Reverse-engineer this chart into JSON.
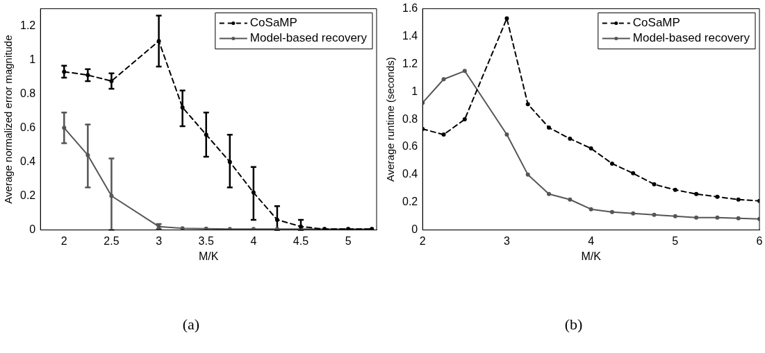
{
  "chart_data": [
    {
      "type": "line",
      "xlabel": "M/K",
      "ylabel": "Average normalized error magnitude",
      "annotations": [
        "(a)"
      ],
      "xlim": [
        1.75,
        5.3
      ],
      "xticks": [
        2,
        2.5,
        3,
        3.5,
        4,
        4.5,
        5
      ],
      "ylim": [
        0,
        1.3
      ],
      "yticks": [
        0,
        0.2,
        0.4,
        0.6,
        0.8,
        1,
        1.2
      ],
      "legend": "top right",
      "grid": false,
      "marker": "circle",
      "x": [
        2,
        2.25,
        2.5,
        3,
        3.25,
        3.5,
        3.75,
        4,
        4.25,
        4.5,
        4.75,
        5,
        5.25
      ],
      "series": [
        {
          "name": "CoSaMP",
          "color": "#000000",
          "line_style": "dashed",
          "values": [
            0.93,
            0.91,
            0.875,
            1.11,
            0.72,
            0.56,
            0.4,
            0.22,
            0.06,
            0.02,
            0.005,
            0.005,
            0.005
          ],
          "errors": [
            [
              0.895,
              0.965
            ],
            [
              0.875,
              0.945
            ],
            [
              0.83,
              0.92
            ],
            [
              0.96,
              1.26
            ],
            [
              0.61,
              0.82
            ],
            [
              0.43,
              0.69
            ],
            [
              0.25,
              0.56
            ],
            [
              0.06,
              0.37
            ],
            [
              0,
              0.14
            ],
            [
              0,
              0.06
            ],
            null,
            null,
            null
          ]
        },
        {
          "name": "Model-based recovery",
          "color": "#555555",
          "line_style": "solid",
          "values": [
            0.6,
            0.44,
            0.2,
            0.02,
            0.01,
            0.008,
            0.006,
            0.005,
            0.005,
            0.005,
            0.005,
            0.005,
            0.005
          ],
          "errors": [
            [
              0.51,
              0.69
            ],
            [
              0.25,
              0.62
            ],
            [
              0,
              0.42
            ],
            [
              0.005,
              0.035
            ],
            null,
            null,
            null,
            null,
            null,
            null,
            null,
            null,
            null
          ]
        }
      ]
    },
    {
      "type": "line",
      "xlabel": "M/K",
      "ylabel": "Average runtime (seconds)",
      "annotations": [
        "(b)"
      ],
      "xlim": [
        2,
        6
      ],
      "xticks": [
        2,
        3,
        4,
        5,
        6
      ],
      "ylim": [
        0,
        1.6
      ],
      "yticks": [
        0,
        0.2,
        0.4,
        0.6,
        0.8,
        1,
        1.2,
        1.4,
        1.6
      ],
      "legend": "top right",
      "grid": false,
      "marker": "circle",
      "x": [
        2,
        2.25,
        2.5,
        3,
        3.25,
        3.5,
        3.75,
        4,
        4.25,
        4.5,
        4.75,
        5,
        5.25,
        5.5,
        5.75,
        6
      ],
      "series": [
        {
          "name": "CoSaMP",
          "color": "#000000",
          "line_style": "dashed",
          "values": [
            0.73,
            0.69,
            0.8,
            1.53,
            0.91,
            0.74,
            0.66,
            0.59,
            0.48,
            0.41,
            0.33,
            0.29,
            0.26,
            0.24,
            0.22,
            0.21
          ]
        },
        {
          "name": "Model-based recovery",
          "color": "#555555",
          "line_style": "solid",
          "values": [
            0.92,
            1.09,
            1.15,
            0.69,
            0.4,
            0.26,
            0.22,
            0.15,
            0.13,
            0.12,
            0.11,
            0.1,
            0.09,
            0.09,
            0.085,
            0.08
          ]
        }
      ]
    }
  ]
}
